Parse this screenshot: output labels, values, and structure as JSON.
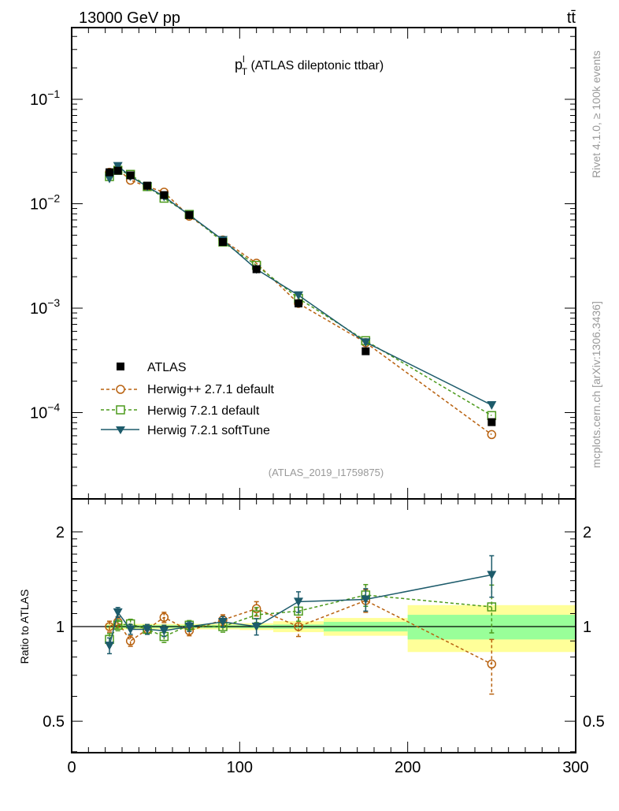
{
  "header": {
    "energy_label": "13000 GeV pp",
    "process_label": "tt̄",
    "plot_title_main": "p",
    "plot_title_sup": "l",
    "plot_title_sub": "T",
    "plot_title_rest": " (ATLAS dileptonic ttbar)",
    "analysis_id": "(ATLAS_2019_I1759875)",
    "side_text_rivet": "Rivet 4.1.0, ≥ 100k events",
    "side_text_mcplots": "mcplots.cern.ch [arXiv:1306.3436]"
  },
  "colors": {
    "atlas": "#000000",
    "herwigpp": "#b8610f",
    "herwig7": "#4c9a1c",
    "softtune": "#1d5b6b",
    "band_total": "#ffff99",
    "band_stat": "#99ff99"
  },
  "chart_data": {
    "type": "scatter",
    "title": "p_T^l (ATLAS dileptonic ttbar)",
    "xlabel": "",
    "ylabel_ratio": "Ratio to ATLAS",
    "xlim": [
      0,
      300
    ],
    "ylim_main": [
      1.5e-05,
      0.49
    ],
    "yscale_main": "log",
    "ylim_ratio": [
      0.4,
      2.55
    ],
    "yscale_ratio": "log",
    "legend_position": "lower-left",
    "xticks": [
      "0",
      "100",
      "200",
      "300"
    ],
    "main_yticks": [
      {
        "value": 0.1,
        "base": "10",
        "exp": "−1"
      },
      {
        "value": 0.01,
        "base": "10",
        "exp": "−2"
      },
      {
        "value": 0.001,
        "base": "10",
        "exp": "−3"
      },
      {
        "value": 0.0001,
        "base": "10",
        "exp": "−4"
      }
    ],
    "ratio_yticks": [
      {
        "value": 2,
        "label": "2"
      },
      {
        "value": 1,
        "label": "1"
      },
      {
        "value": 0.5,
        "label": "0.5"
      }
    ],
    "x": [
      22.5,
      27.5,
      35,
      45,
      55,
      70,
      90,
      110,
      135,
      175,
      250
    ],
    "bin_edges": [
      20,
      25,
      30,
      40,
      50,
      60,
      80,
      100,
      120,
      150,
      200,
      300
    ],
    "band_total_rel": [
      0.02,
      0.02,
      0.02,
      0.02,
      0.02,
      0.02,
      0.02,
      0.025,
      0.04,
      0.065,
      0.17
    ],
    "band_stat_rel": [
      0.01,
      0.01,
      0.01,
      0.01,
      0.01,
      0.01,
      0.01,
      0.012,
      0.015,
      0.035,
      0.09
    ],
    "series": [
      {
        "key": "atlas",
        "name": "ATLAS",
        "marker": "filled-square",
        "line": "none",
        "values": [
          0.02,
          0.0207,
          0.0187,
          0.0149,
          0.0121,
          0.0078,
          0.0043,
          0.00236,
          0.00111,
          0.000387,
          8.1e-05
        ],
        "ratio": [
          1,
          1,
          1,
          1,
          1,
          1,
          1,
          1,
          1,
          1,
          1
        ],
        "ratio_err": [
          0,
          0,
          0,
          0,
          0,
          0,
          0,
          0,
          0,
          0,
          0
        ]
      },
      {
        "key": "herwigpp",
        "name": "Herwig++ 2.7.1 default",
        "marker": "open-circle",
        "line": "dashed",
        "values": [
          0.02,
          0.0214,
          0.0168,
          0.0146,
          0.0129,
          0.0076,
          0.0045,
          0.00269,
          0.00111,
          0.000468,
          6.16e-05
        ],
        "ratio": [
          1.0,
          1.035,
          0.9,
          0.98,
          1.07,
          0.97,
          1.05,
          1.14,
          1.0,
          1.21,
          0.76
        ],
        "ratio_err": [
          0.04,
          0.04,
          0.035,
          0.035,
          0.04,
          0.035,
          0.04,
          0.06,
          0.07,
          0.1,
          0.15
        ]
      },
      {
        "key": "herwig7",
        "name": "Herwig 7.2.1 default",
        "marker": "open-square",
        "line": "dashed",
        "values": [
          0.0182,
          0.0209,
          0.0191,
          0.0146,
          0.0113,
          0.0079,
          0.0043,
          0.00257,
          0.00124,
          0.000488,
          9.36e-05
        ],
        "ratio": [
          0.91,
          1.01,
          1.02,
          0.98,
          0.93,
          1.01,
          1.0,
          1.09,
          1.12,
          1.26,
          1.155
        ],
        "ratio_err": [
          0.04,
          0.04,
          0.035,
          0.035,
          0.04,
          0.035,
          0.04,
          0.06,
          0.08,
          0.1,
          0.2
        ]
      },
      {
        "key": "softtune",
        "name": "Herwig 7.2.1 softTune",
        "marker": "filled-down-triangle",
        "line": "solid",
        "values": [
          0.0174,
          0.023,
          0.0183,
          0.0146,
          0.0117,
          0.0078,
          0.0045,
          0.00236,
          0.00133,
          0.000472,
          0.000118
        ],
        "ratio": [
          0.87,
          1.11,
          0.98,
          0.98,
          0.97,
          1.0,
          1.035,
          1.0,
          1.2,
          1.22,
          1.46
        ],
        "ratio_err": [
          0.05,
          0.04,
          0.035,
          0.035,
          0.04,
          0.035,
          0.04,
          0.06,
          0.09,
          0.1,
          0.22
        ]
      }
    ]
  }
}
